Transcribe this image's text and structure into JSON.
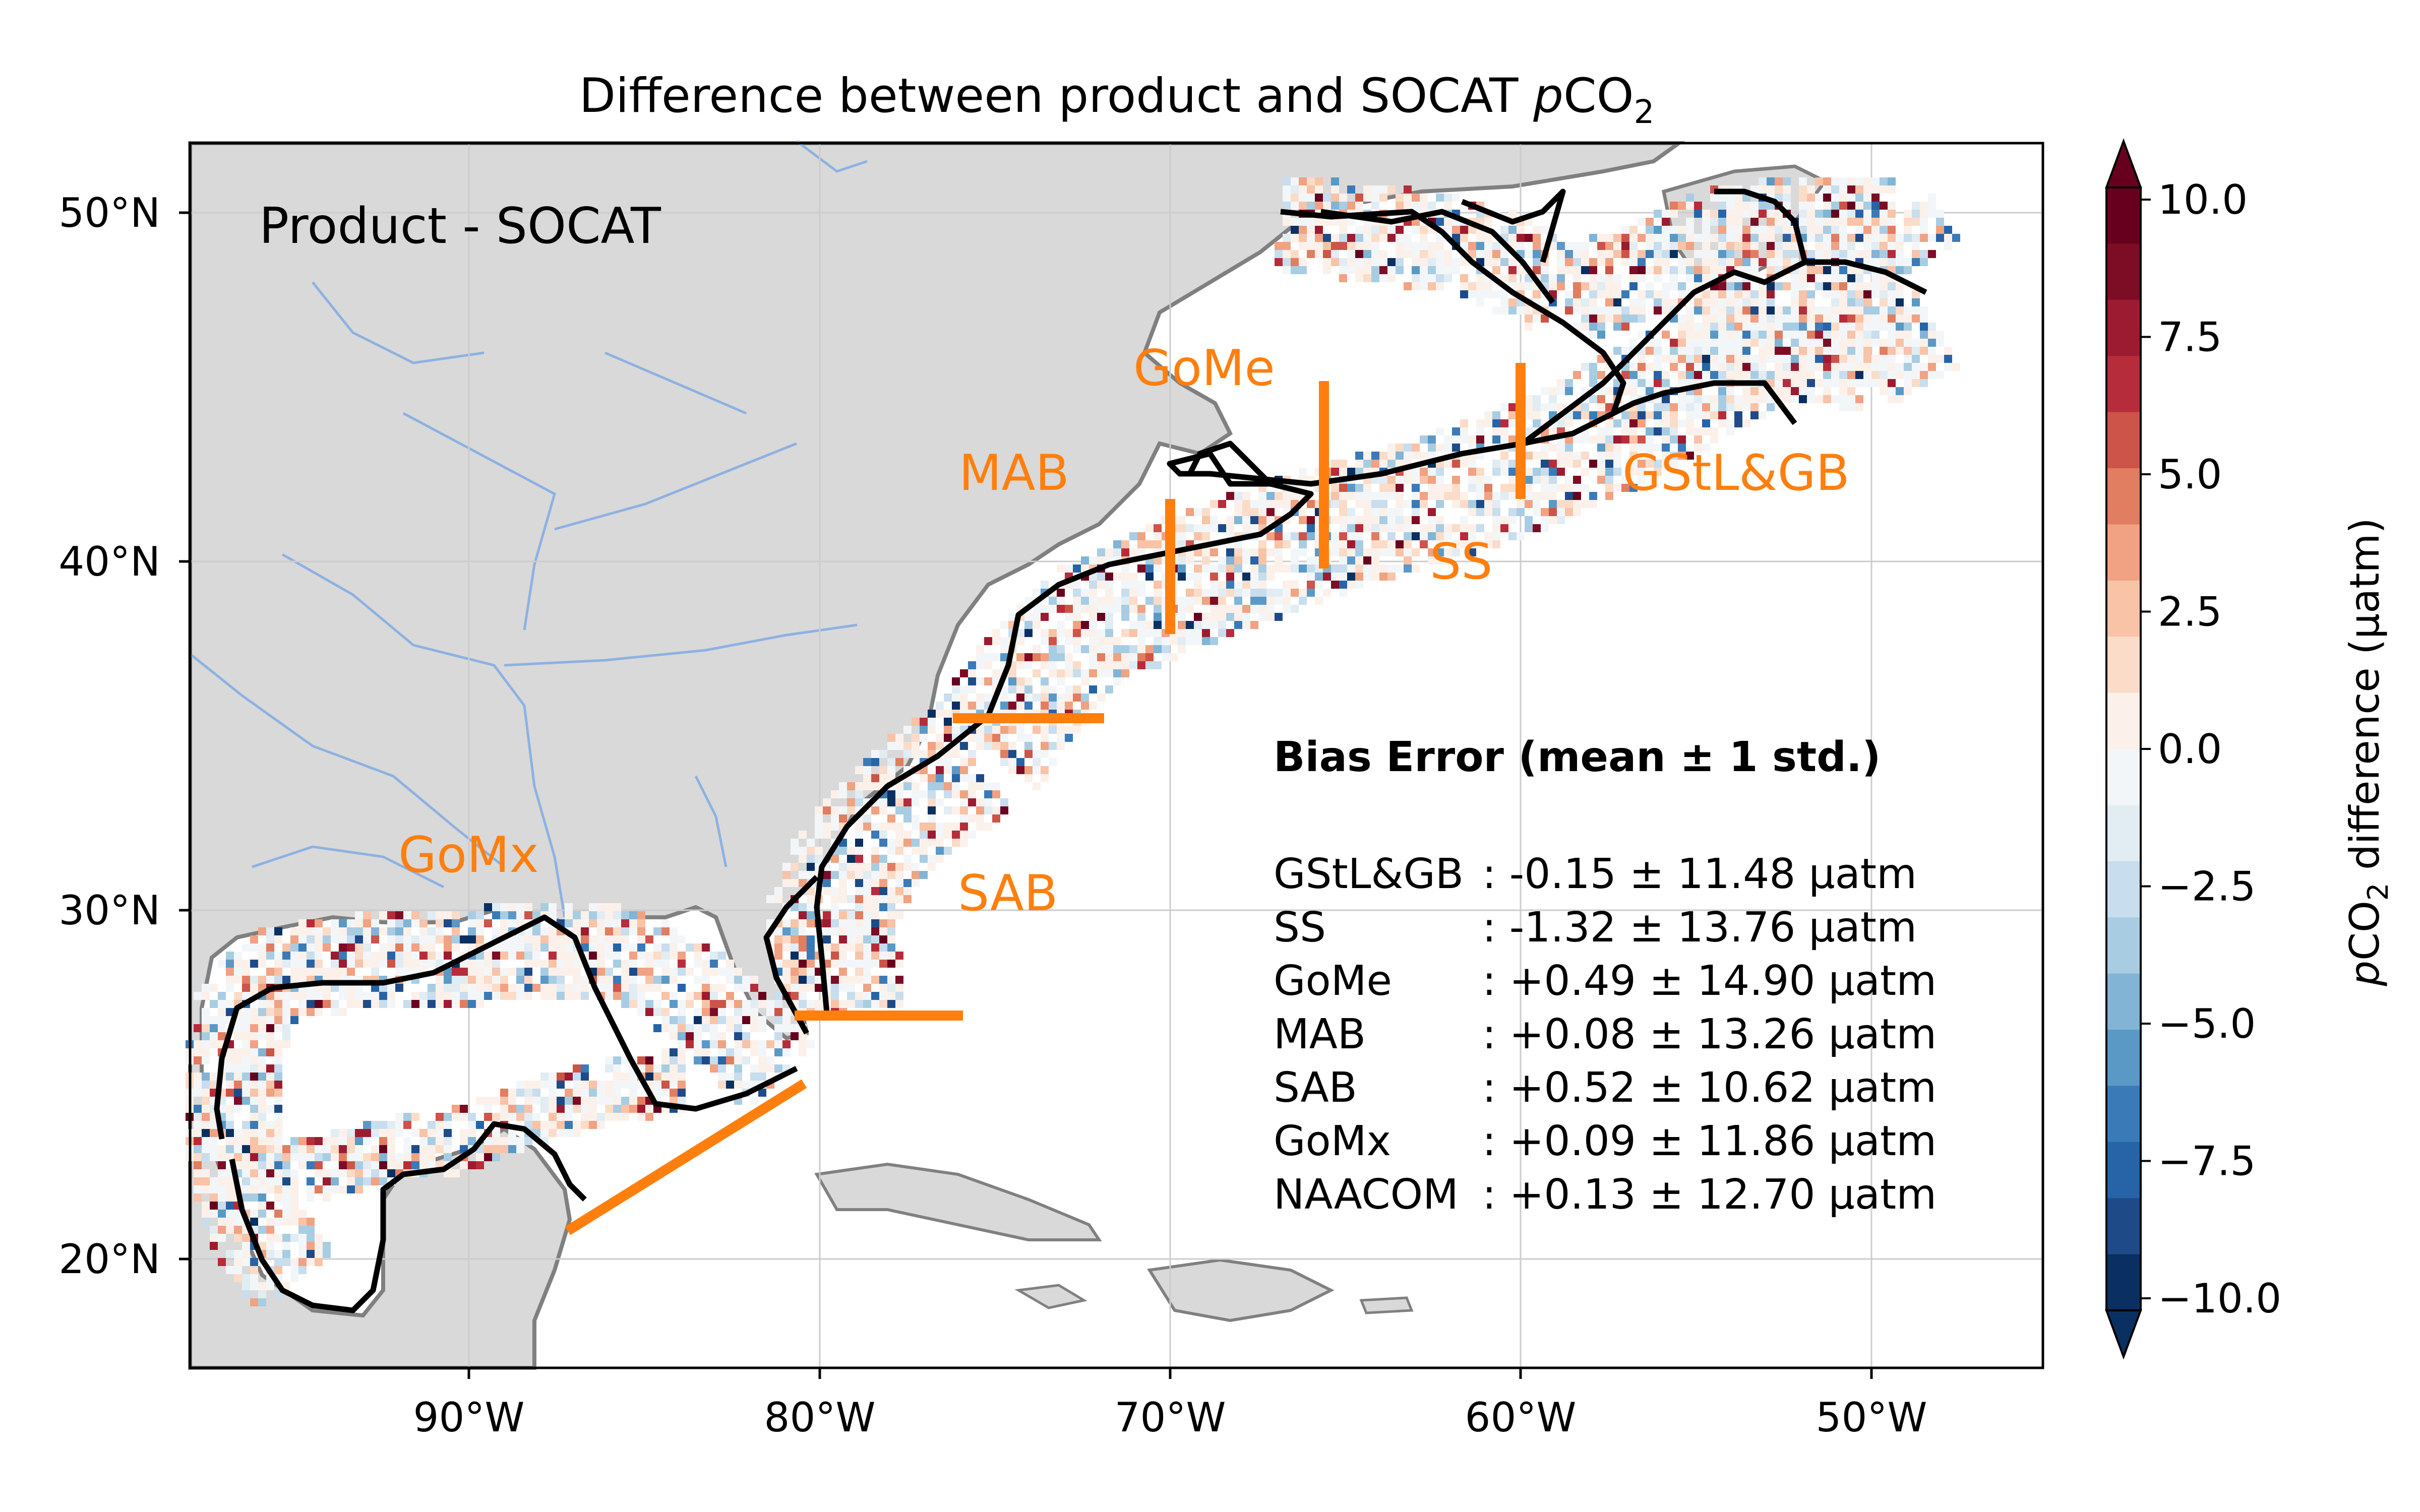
{
  "title_main": "Difference between product and SOCAT ",
  "title_italic": "p",
  "title_species": "CO",
  "title_sub": "2",
  "panel_label": "Product - SOCAT",
  "x_ticks": [
    "90°W",
    "80°W",
    "70°W",
    "60°W",
    "50°W"
  ],
  "y_ticks": [
    "50°N",
    "40°N",
    "30°N",
    "20°N"
  ],
  "regions": [
    "GoMe",
    "MAB",
    "GStL&GB",
    "SS",
    "GoMx",
    "SAB"
  ],
  "bias_title": "Bias Error (mean ± 1 std.)",
  "bias_rows": [
    {
      "region": "GStL&GB",
      "value": ": -0.15 ± 11.48 µatm"
    },
    {
      "region": "SS",
      "value": ": -1.32 ± 13.76 µatm"
    },
    {
      "region": "GoMe",
      "value": ": +0.49 ± 14.90 µatm"
    },
    {
      "region": "MAB",
      "value": ": +0.08 ± 13.26 µatm"
    },
    {
      "region": "SAB",
      "value": ": +0.52 ± 10.62 µatm"
    },
    {
      "region": "GoMx",
      "value": ": +0.09 ± 11.86 µatm"
    },
    {
      "region": "NAACOM",
      "value": ": +0.13 ± 12.70 µatm"
    }
  ],
  "colorbar": {
    "ticks": [
      "10.0",
      "7.5",
      "5.0",
      "2.5",
      "0.0",
      "−2.5",
      "−5.0",
      "−7.5",
      "−10.0"
    ],
    "label_italic": "p",
    "label_species": "CO",
    "label_sub": "2",
    "label_rest": " difference (µatm)",
    "range": [
      -10,
      10
    ],
    "colors": [
      "#0a3061",
      "#1e4b88",
      "#2664a7",
      "#3a7ab7",
      "#5a99c6",
      "#81b4d5",
      "#a8cde2",
      "#c8dded",
      "#e1ecf3",
      "#f3f6f8",
      "#fbf1ea",
      "#fbdcc8",
      "#f8c3a7",
      "#f0a283",
      "#e17d61",
      "#cc5449",
      "#b72c3a",
      "#9c1b30",
      "#7d0d25",
      "#67001f"
    ]
  },
  "land_color": "#d9d9d9",
  "region_color": "#ff7f0e"
}
